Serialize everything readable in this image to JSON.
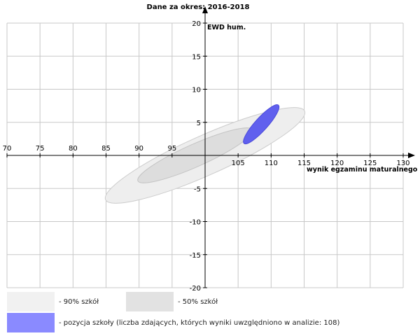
{
  "chart_data": {
    "type": "scatter",
    "title": "Dane za okres: 2016-2018",
    "xlabel": "wynik egzaminu maturalnego",
    "ylabel": "EWD hum.",
    "xlim": [
      70,
      130
    ],
    "ylim": [
      -20,
      20
    ],
    "x_ticks": [
      70,
      75,
      80,
      85,
      90,
      95,
      105,
      110,
      115,
      120,
      125,
      130
    ],
    "y_ticks": [
      20,
      15,
      10,
      5,
      -5,
      -10,
      -15,
      -20
    ],
    "grid": true,
    "ellipses": [
      {
        "name": "90% szkół",
        "cx": 100,
        "cy": 0,
        "rx": 16.5,
        "ry": 3.0,
        "angle_deg": 24,
        "fill": "#eeeeee",
        "stroke": "#cccccc"
      },
      {
        "name": "50% szkół",
        "cx": 98.5,
        "cy": 0,
        "rx": 9.5,
        "ry": 1.7,
        "angle_deg": 24,
        "fill": "#dddddd",
        "stroke": "#c4c4c4"
      },
      {
        "name": "pozycja szkoły",
        "cx": 108.5,
        "cy": 4.7,
        "rx": 3.9,
        "ry": 0.95,
        "angle_deg": 48,
        "fill": "#6060ee",
        "stroke": "#4a4ad8"
      }
    ]
  },
  "legend": {
    "items": [
      {
        "label": "- 90% szkół",
        "color": "#f1f1f1"
      },
      {
        "label": "- 50% szkół",
        "color": "#e2e2e2"
      },
      {
        "label": "- pozycja szkoły (liczba zdających, których wyniki uwzględniono w analizie: 108)",
        "color": "#8a8aff"
      }
    ]
  }
}
